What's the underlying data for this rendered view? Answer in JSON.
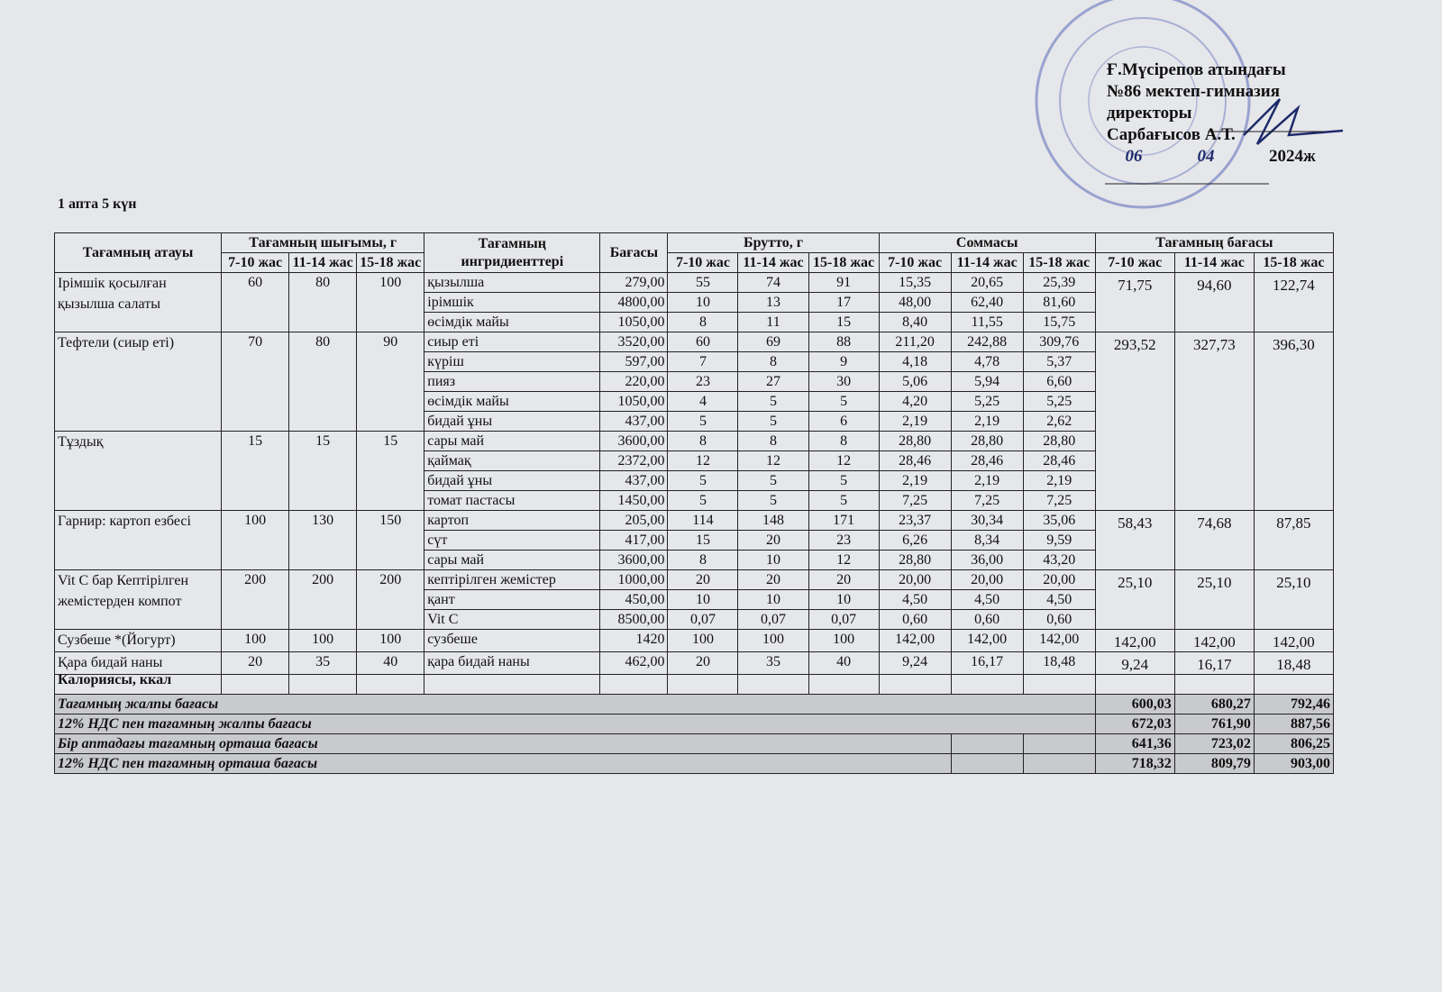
{
  "approval": {
    "lines": [
      "Ғ.Мүсірепов атындағы",
      "№86 мектеп-гимназия",
      "директоры",
      "Сарбағысов А.Т."
    ],
    "day": "06",
    "month": "04",
    "year": "2024ж"
  },
  "subtitle": "1 апта 5 күн",
  "table": {
    "headers": {
      "name": "Тағамның атауы",
      "yield": "Тағамның шығымы, г",
      "ingredients": "Тағамның ингридиенттері",
      "price": "Бағасы",
      "brutto": "Брутто, г",
      "sum": "Соммасы",
      "cost": "Тағамның бағасы",
      "ages": [
        "7-10 жас",
        "11-14 жас",
        "15-18 жас"
      ]
    },
    "dishes": [
      {
        "name": "Ірімшік қосылған қызылша салаты",
        "yield": [
          "60",
          "80",
          "100"
        ],
        "cost": [
          "71,75",
          "94,60",
          "122,74"
        ],
        "ingredients": [
          {
            "name": "қызылша",
            "price": "279,00",
            "brutto": [
              "55",
              "74",
              "91"
            ],
            "sum": [
              "15,35",
              "20,65",
              "25,39"
            ]
          },
          {
            "name": "ірімшік",
            "price": "4800,00",
            "brutto": [
              "10",
              "13",
              "17"
            ],
            "sum": [
              "48,00",
              "62,40",
              "81,60"
            ]
          },
          {
            "name": "өсімдік майы",
            "price": "1050,00",
            "brutto": [
              "8",
              "11",
              "15"
            ],
            "sum": [
              "8,40",
              "11,55",
              "15,75"
            ]
          }
        ]
      },
      {
        "name": "Тефтели (сиыр еті)",
        "yield": [
          "70",
          "80",
          "90"
        ],
        "cost": [
          "293,52",
          "327,73",
          "396,30"
        ],
        "ingredients": [
          {
            "name": "сиыр еті",
            "price": "3520,00",
            "brutto": [
              "60",
              "69",
              "88"
            ],
            "sum": [
              "211,20",
              "242,88",
              "309,76"
            ]
          },
          {
            "name": "күріш",
            "price": "597,00",
            "brutto": [
              "7",
              "8",
              "9"
            ],
            "sum": [
              "4,18",
              "4,78",
              "5,37"
            ]
          },
          {
            "name": "пияз",
            "price": "220,00",
            "brutto": [
              "23",
              "27",
              "30"
            ],
            "sum": [
              "5,06",
              "5,94",
              "6,60"
            ]
          },
          {
            "name": "өсімдік майы",
            "price": "1050,00",
            "brutto": [
              "4",
              "5",
              "5"
            ],
            "sum": [
              "4,20",
              "5,25",
              "5,25"
            ]
          },
          {
            "name": "бидай ұны",
            "price": "437,00",
            "brutto": [
              "5",
              "5",
              "6"
            ],
            "sum": [
              "2,19",
              "2,19",
              "2,62"
            ]
          }
        ]
      },
      {
        "name": "Тұздық",
        "yield": [
          "15",
          "15",
          "15"
        ],
        "ingredients": [
          {
            "name": "сары май",
            "price": "3600,00",
            "brutto": [
              "8",
              "8",
              "8"
            ],
            "sum": [
              "28,80",
              "28,80",
              "28,80"
            ]
          },
          {
            "name": "қаймақ",
            "price": "2372,00",
            "brutto": [
              "12",
              "12",
              "12"
            ],
            "sum": [
              "28,46",
              "28,46",
              "28,46"
            ]
          },
          {
            "name": "бидай ұны",
            "price": "437,00",
            "brutto": [
              "5",
              "5",
              "5"
            ],
            "sum": [
              "2,19",
              "2,19",
              "2,19"
            ]
          },
          {
            "name": "томат пастасы",
            "price": "1450,00",
            "brutto": [
              "5",
              "5",
              "5"
            ],
            "sum": [
              "7,25",
              "7,25",
              "7,25"
            ]
          }
        ]
      },
      {
        "name": "Гарнир:  картоп езбесі",
        "yield": [
          "100",
          "130",
          "150"
        ],
        "cost": [
          "58,43",
          "74,68",
          "87,85"
        ],
        "ingredients": [
          {
            "name": "картоп",
            "price": "205,00",
            "brutto": [
              "114",
              "148",
              "171"
            ],
            "sum": [
              "23,37",
              "30,34",
              "35,06"
            ]
          },
          {
            "name": "сүт",
            "price": "417,00",
            "brutto": [
              "15",
              "20",
              "23"
            ],
            "sum": [
              "6,26",
              "8,34",
              "9,59"
            ]
          },
          {
            "name": "сары май",
            "price": "3600,00",
            "brutto": [
              "8",
              "10",
              "12"
            ],
            "sum": [
              "28,80",
              "36,00",
              "43,20"
            ]
          }
        ]
      },
      {
        "name": "Vit C бар Кептірілген жемістерден компот",
        "yield": [
          "200",
          "200",
          "200"
        ],
        "cost": [
          "25,10",
          "25,10",
          "25,10"
        ],
        "ingredients": [
          {
            "name": "кептірілген жемістер",
            "price": "1000,00",
            "brutto": [
              "20",
              "20",
              "20"
            ],
            "sum": [
              "20,00",
              "20,00",
              "20,00"
            ]
          },
          {
            "name": "қант",
            "price": "450,00",
            "brutto": [
              "10",
              "10",
              "10"
            ],
            "sum": [
              "4,50",
              "4,50",
              "4,50"
            ]
          },
          {
            "name": "Vit C",
            "price": "8500,00",
            "brutto": [
              "0,07",
              "0,07",
              "0,07"
            ],
            "sum": [
              "0,60",
              "0,60",
              "0,60"
            ]
          }
        ]
      },
      {
        "name": "Сузбеше *(Йогурт)",
        "yield": [
          "100",
          "100",
          "100"
        ],
        "cost": [
          "142,00",
          "142,00",
          "142,00"
        ],
        "ingredients": [
          {
            "name": "сузбеше",
            "price": "1420",
            "brutto": [
              "100",
              "100",
              "100"
            ],
            "sum": [
              "142,00",
              "142,00",
              "142,00"
            ]
          }
        ]
      },
      {
        "name": "Қара бидай наны",
        "yield": [
          "20",
          "35",
          "40"
        ],
        "cost": [
          "9,24",
          "16,17",
          "18,48"
        ],
        "ingredients": [
          {
            "name": "қара бидай наны",
            "price": "462,00",
            "brutto": [
              "20",
              "35",
              "40"
            ],
            "sum": [
              "9,24",
              "16,17",
              "18,48"
            ]
          }
        ]
      }
    ],
    "calories": "Калориясы, ккал",
    "summary": [
      {
        "label": "Тағамның жалпы бағасы",
        "values": [
          "600,03",
          "680,27",
          "792,46"
        ]
      },
      {
        "label": "12% НДС пен тағамның жалпы бағасы",
        "values": [
          "672,03",
          "761,90",
          "887,56"
        ]
      },
      {
        "label": "Бір аптадағы тағамның орташа бағасы",
        "values": [
          "641,36",
          "723,02",
          "806,25"
        ]
      },
      {
        "label": "12% НДС пен тағамның орташа бағасы",
        "values": [
          "718,32",
          "809,79",
          "903,00"
        ]
      }
    ]
  }
}
